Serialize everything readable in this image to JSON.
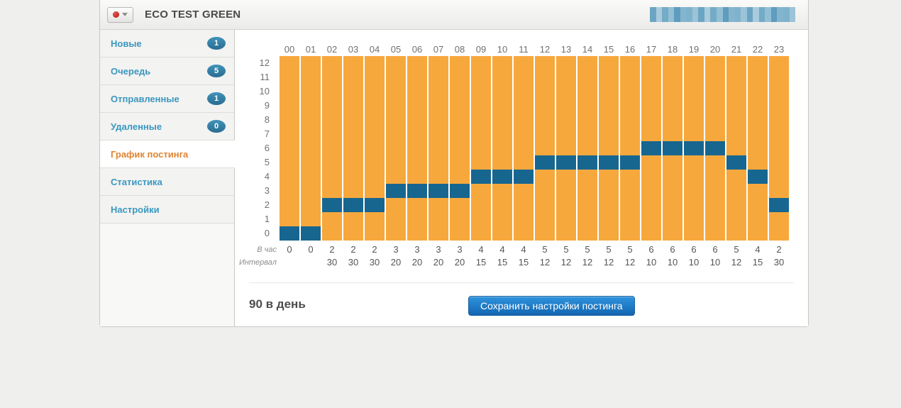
{
  "header": {
    "title": "ECO TEST GREEN",
    "account_redacted_palette": [
      "#a9cbdc",
      "#7fb2cc",
      "#92bfd4",
      "#6ba5c3",
      "#84b5ce",
      "#74abc7",
      "#9cc3d7",
      "#5f9cbd"
    ]
  },
  "sidebar": {
    "items": [
      {
        "key": "new",
        "label": "Новые",
        "badge": "1"
      },
      {
        "key": "queue",
        "label": "Очередь",
        "badge": "5"
      },
      {
        "key": "sent",
        "label": "Отправленные",
        "badge": "1"
      },
      {
        "key": "deleted",
        "label": "Удаленные",
        "badge": "0"
      },
      {
        "key": "schedule",
        "label": "График постинга",
        "active": true
      },
      {
        "key": "statistics",
        "label": "Статистика"
      },
      {
        "key": "settings",
        "label": "Настройки"
      }
    ]
  },
  "chart_data": {
    "type": "heatmap",
    "x_hours": [
      "00",
      "01",
      "02",
      "03",
      "04",
      "05",
      "06",
      "07",
      "08",
      "09",
      "10",
      "11",
      "12",
      "13",
      "14",
      "15",
      "16",
      "17",
      "18",
      "19",
      "20",
      "21",
      "22",
      "23"
    ],
    "y_ticks": [
      12,
      11,
      10,
      9,
      8,
      7,
      6,
      5,
      4,
      3,
      2,
      1,
      0
    ],
    "ylim": [
      0,
      12
    ],
    "series": [
      {
        "name": "В час",
        "values": [
          0,
          0,
          2,
          2,
          2,
          3,
          3,
          3,
          3,
          4,
          4,
          4,
          5,
          5,
          5,
          5,
          5,
          6,
          6,
          6,
          6,
          5,
          4,
          2
        ]
      },
      {
        "name": "Интервал",
        "values": [
          "",
          "",
          "30",
          "30",
          "30",
          "20",
          "20",
          "20",
          "20",
          "15",
          "15",
          "15",
          "12",
          "12",
          "12",
          "12",
          "12",
          "10",
          "10",
          "10",
          "10",
          "12",
          "15",
          "30"
        ]
      }
    ],
    "row_labels": {
      "per_hour": "В час",
      "interval": "Интервал"
    },
    "colors": {
      "grid_background": "#F7A83D",
      "selected_cell": "#176690"
    },
    "legend": "none",
    "grid": "column-gaps-only"
  },
  "footer": {
    "total_label": "90 в день",
    "save_button_label": "Сохранить настройки постинга"
  }
}
